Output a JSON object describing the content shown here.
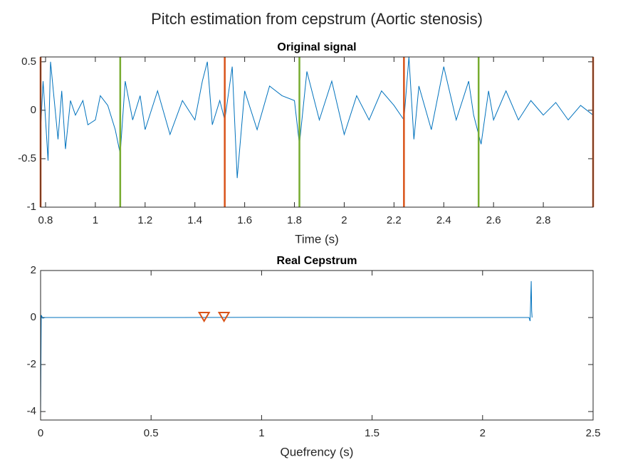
{
  "title": "Pitch estimation from cepstrum (Aortic stenosis)",
  "chart_data": [
    {
      "type": "line",
      "title": "Original signal",
      "x_label": "Time (s)",
      "xlim": [
        0.78,
        3.0
      ],
      "ylim": [
        -1,
        0.55
      ],
      "xticks": [
        0.8,
        1,
        1.2,
        1.4,
        1.6,
        1.8,
        2,
        2.2,
        2.4,
        2.6,
        2.8
      ],
      "yticks": [
        -1,
        -0.5,
        0,
        0.5
      ],
      "series": [
        {
          "color": "#0072bd",
          "x": [
            0.78,
            0.79,
            0.8,
            0.81,
            0.82,
            0.835,
            0.85,
            0.865,
            0.88,
            0.9,
            0.92,
            0.95,
            0.97,
            1.0,
            1.02,
            1.05,
            1.08,
            1.1,
            1.12,
            1.15,
            1.18,
            1.2,
            1.25,
            1.3,
            1.35,
            1.4,
            1.43,
            1.45,
            1.47,
            1.5,
            1.52,
            1.55,
            1.57,
            1.6,
            1.65,
            1.7,
            1.75,
            1.8,
            1.82,
            1.85,
            1.9,
            1.95,
            2.0,
            2.05,
            2.1,
            2.15,
            2.2,
            2.24,
            2.26,
            2.28,
            2.3,
            2.35,
            2.4,
            2.45,
            2.5,
            2.52,
            2.55,
            2.58,
            2.6,
            2.65,
            2.7,
            2.75,
            2.8,
            2.85,
            2.9,
            2.95,
            3.0
          ],
          "values": [
            -0.2,
            0.3,
            -0.1,
            -0.52,
            0.5,
            0.1,
            -0.3,
            0.2,
            -0.4,
            0.1,
            -0.05,
            0.1,
            -0.15,
            -0.1,
            0.15,
            0.05,
            -0.2,
            -0.45,
            0.3,
            -0.1,
            0.15,
            -0.2,
            0.2,
            -0.25,
            0.1,
            -0.1,
            0.3,
            0.5,
            -0.15,
            0.1,
            -0.1,
            0.45,
            -0.7,
            0.2,
            -0.2,
            0.25,
            0.15,
            0.1,
            -0.35,
            0.4,
            -0.1,
            0.3,
            -0.25,
            0.15,
            -0.1,
            0.2,
            0.05,
            -0.1,
            0.55,
            -0.3,
            0.25,
            -0.2,
            0.45,
            -0.1,
            0.3,
            -0.05,
            -0.35,
            0.2,
            -0.1,
            0.2,
            -0.1,
            0.1,
            -0.05,
            0.08,
            -0.1,
            0.05,
            -0.05
          ]
        }
      ],
      "vlines": [
        {
          "color": "#d95319",
          "x": [
            0.78,
            1.52,
            2.24,
            3.0
          ]
        },
        {
          "color": "#77ac30",
          "x": [
            1.1,
            1.82,
            2.54
          ]
        }
      ]
    },
    {
      "type": "line",
      "title": "Real Cepstrum",
      "x_label": "Quefrency (s)",
      "xlim": [
        0,
        2.5
      ],
      "ylim": [
        -4.36,
        2
      ],
      "xticks": [
        0,
        0.5,
        1,
        1.5,
        2,
        2.5
      ],
      "yticks": [
        -4,
        -2,
        0,
        2
      ],
      "series": [
        {
          "color": "#0072bd",
          "x": [
            0,
            0.003,
            0.01,
            0.02,
            0.5,
            1,
            1.5,
            2,
            2.21,
            2.215,
            2.22,
            2.222,
            2.224
          ],
          "values": [
            -4.2,
            0.1,
            -0.03,
            0,
            0,
            0.01,
            0,
            0,
            0,
            -0.15,
            1.55,
            0.3,
            0
          ]
        }
      ],
      "markers": {
        "color": "#d95319",
        "x": [
          0.74,
          0.83
        ],
        "values": [
          0,
          0
        ]
      }
    }
  ]
}
